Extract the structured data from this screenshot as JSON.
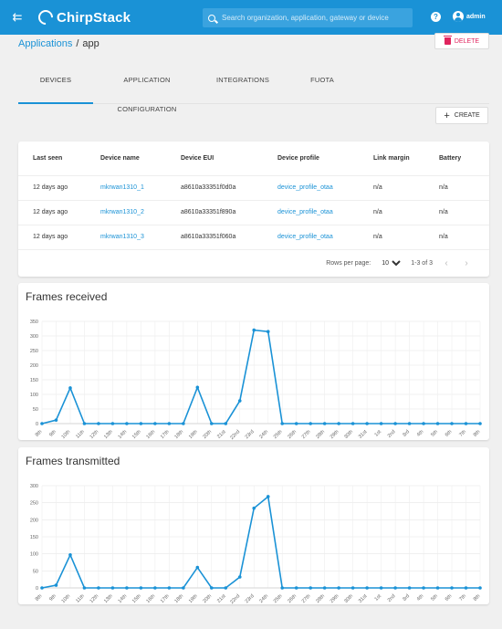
{
  "header": {
    "brand": "ChirpStack",
    "search_placeholder": "Search organization, application, gateway or device",
    "user": "admin",
    "accent": "#1a92d6"
  },
  "breadcrumb": {
    "parent": "Applications",
    "sep": "/",
    "current": "app"
  },
  "actions": {
    "delete_label": "DELETE",
    "create_label": "CREATE"
  },
  "tabs": [
    {
      "label": "DEVICES",
      "active": true
    },
    {
      "label": "APPLICATION CONFIGURATION",
      "active": false
    },
    {
      "label": "INTEGRATIONS",
      "active": false
    },
    {
      "label": "FUOTA",
      "active": false
    }
  ],
  "table": {
    "columns": [
      "Last seen",
      "Device name",
      "Device EUI",
      "Device profile",
      "Link margin",
      "Battery"
    ],
    "rows": [
      [
        "12 days ago",
        "mkrwan1310_1",
        "a8610a33351f0d0a",
        "device_profile_otaa",
        "n/a",
        "n/a"
      ],
      [
        "12 days ago",
        "mkrwan1310_2",
        "a8610a33351f890a",
        "device_profile_otaa",
        "n/a",
        "n/a"
      ],
      [
        "12 days ago",
        "mkrwan1310_3",
        "a8610a33351f060a",
        "device_profile_otaa",
        "n/a",
        "n/a"
      ]
    ]
  },
  "pagination": {
    "rows_label": "Rows per page:",
    "rows_value": "10",
    "range": "1-3 of 3"
  },
  "chart_data": [
    {
      "type": "line",
      "title": "Frames received",
      "categories": [
        "8th",
        "9th",
        "10th",
        "11th",
        "12th",
        "13th",
        "14th",
        "15th",
        "16th",
        "17th",
        "18th",
        "19th",
        "20th",
        "21st",
        "22nd",
        "23rd",
        "24th",
        "25th",
        "26th",
        "27th",
        "28th",
        "29th",
        "30th",
        "31st",
        "1st",
        "2nd",
        "3rd",
        "4th",
        "5th",
        "6th",
        "7th",
        "8th"
      ],
      "values": [
        0,
        12,
        122,
        0,
        0,
        0,
        0,
        0,
        0,
        0,
        0,
        124,
        0,
        0,
        78,
        320,
        315,
        0,
        0,
        0,
        0,
        0,
        0,
        0,
        0,
        0,
        0,
        0,
        0,
        0,
        0,
        0
      ],
      "ylim": [
        0,
        350
      ],
      "yticks": [
        0,
        50,
        100,
        150,
        200,
        250,
        300,
        350
      ],
      "grid": true,
      "color": "#1a92d6"
    },
    {
      "type": "line",
      "title": "Frames transmitted",
      "categories": [
        "8th",
        "9th",
        "10th",
        "11th",
        "12th",
        "13th",
        "14th",
        "15th",
        "16th",
        "17th",
        "18th",
        "19th",
        "20th",
        "21st",
        "22nd",
        "23rd",
        "24th",
        "25th",
        "26th",
        "27th",
        "28th",
        "29th",
        "30th",
        "31st",
        "1st",
        "2nd",
        "3rd",
        "4th",
        "5th",
        "6th",
        "7th",
        "8th"
      ],
      "values": [
        0,
        8,
        97,
        0,
        0,
        0,
        0,
        0,
        0,
        0,
        0,
        60,
        0,
        0,
        32,
        234,
        268,
        0,
        0,
        0,
        0,
        0,
        0,
        0,
        0,
        0,
        0,
        0,
        0,
        0,
        0,
        0
      ],
      "ylim": [
        0,
        300
      ],
      "yticks": [
        0,
        50,
        100,
        150,
        200,
        250,
        300
      ],
      "grid": true,
      "color": "#1a92d6"
    }
  ]
}
